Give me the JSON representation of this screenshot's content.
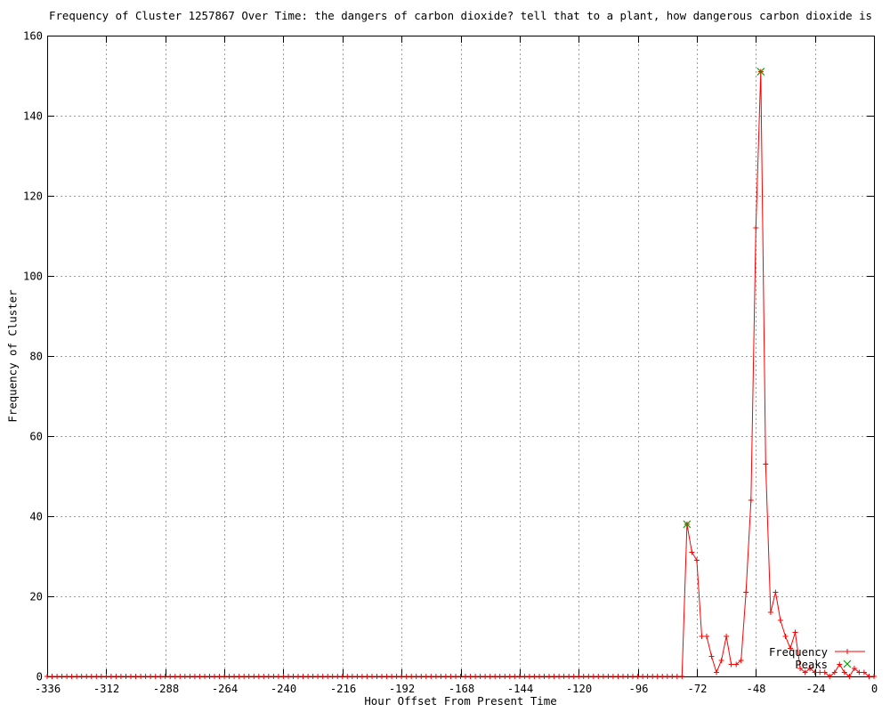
{
  "window": {
    "background_color": "#ffffff"
  },
  "chart_data": {
    "type": "line",
    "title": "Frequency of Cluster 1257867 Over Time: the dangers of carbon dioxide? tell that to a plant, how dangerous carbon dioxide is",
    "xlabel": "Hour Offset From Present Time",
    "ylabel": "Frequency of Cluster",
    "xlim": [
      -336,
      0
    ],
    "ylim": [
      0,
      160
    ],
    "x_ticks": [
      -336,
      -312,
      -288,
      -264,
      -240,
      -216,
      -192,
      -168,
      -144,
      -120,
      -96,
      -72,
      -48,
      -24,
      0
    ],
    "y_ticks": [
      0,
      20,
      40,
      60,
      80,
      100,
      120,
      140,
      160
    ],
    "grid": true,
    "grid_color": "#9a9a9a",
    "border_color": "#000000",
    "legend_position": "inside-bottom-right",
    "x_start": -336,
    "x_step": 2,
    "series": [
      {
        "name": "Frequency",
        "color": "#ff0000",
        "marker": "plus",
        "style": "linespoints",
        "values": [
          0,
          0,
          0,
          0,
          0,
          0,
          0,
          0,
          0,
          0,
          0,
          0,
          0,
          0,
          0,
          0,
          0,
          0,
          0,
          0,
          0,
          0,
          0,
          0,
          0,
          0,
          0,
          0,
          0,
          0,
          0,
          0,
          0,
          0,
          0,
          0,
          0,
          0,
          0,
          0,
          0,
          0,
          0,
          0,
          0,
          0,
          0,
          0,
          0,
          0,
          0,
          0,
          0,
          0,
          0,
          0,
          0,
          0,
          0,
          0,
          0,
          0,
          0,
          0,
          0,
          0,
          0,
          0,
          0,
          0,
          0,
          0,
          0,
          0,
          0,
          0,
          0,
          0,
          0,
          0,
          0,
          0,
          0,
          0,
          0,
          0,
          0,
          0,
          0,
          0,
          0,
          0,
          0,
          0,
          0,
          0,
          0,
          0,
          0,
          0,
          0,
          0,
          0,
          0,
          0,
          0,
          0,
          0,
          0,
          0,
          0,
          0,
          0,
          0,
          0,
          0,
          0,
          0,
          0,
          0,
          0,
          0,
          0,
          0,
          0,
          0,
          0,
          0,
          0,
          0,
          38,
          31,
          29,
          10,
          10,
          5,
          1,
          4,
          10,
          3,
          3,
          4,
          21,
          44,
          112,
          151,
          53,
          16,
          21,
          14,
          10,
          7,
          11,
          2,
          1,
          2,
          1,
          1,
          1,
          0,
          1,
          3,
          1,
          0,
          2,
          1,
          1,
          0,
          0
        ]
      },
      {
        "name": "Peaks",
        "color": "#00a000",
        "marker": "cross",
        "style": "points",
        "points": [
          {
            "x": -76,
            "y": 38
          },
          {
            "x": -46,
            "y": 151
          }
        ]
      }
    ]
  }
}
